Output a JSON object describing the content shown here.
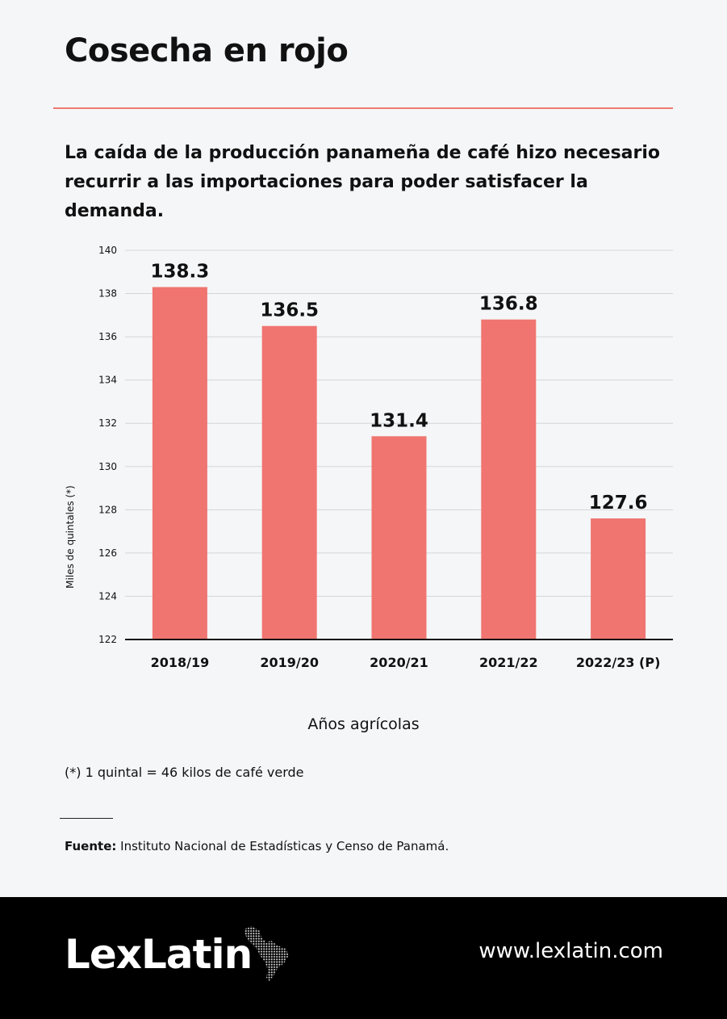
{
  "header": {
    "title": "Cosecha en rojo",
    "subtitle": "La caída de la producción panameña de café hizo necesario recurrir a las importaciones para poder satisfacer la demanda."
  },
  "chart_data": {
    "type": "bar",
    "categories": [
      "2018/19",
      "2019/20",
      "2020/21",
      "2021/22",
      "2022/23 (P)"
    ],
    "values": [
      138.3,
      136.5,
      131.4,
      136.8,
      127.6
    ],
    "data_labels": [
      "138.3",
      "136.5",
      "131.4",
      "136.8",
      "127.6"
    ],
    "xlabel": "Años agrícolas",
    "ylabel": "Miles de quintales (*)",
    "ylim": [
      122,
      140
    ],
    "yticks": [
      122,
      124,
      126,
      128,
      130,
      132,
      134,
      136,
      138,
      140
    ],
    "grid": true,
    "bar_color": "#f07570"
  },
  "footnote": "(*) 1 quintal =  46 kilos de café verde",
  "source": {
    "label": "Fuente:",
    "text": " Instituto Nacional de Estadísticas y Censo de Panamá."
  },
  "footer": {
    "logo": "LexLatin",
    "url": "www.lexlatin.com",
    "logo_icon": "latin-america-map-icon"
  },
  "colors": {
    "accent": "#f07a70",
    "background": "#f5f6f8",
    "footer": "#000000"
  }
}
